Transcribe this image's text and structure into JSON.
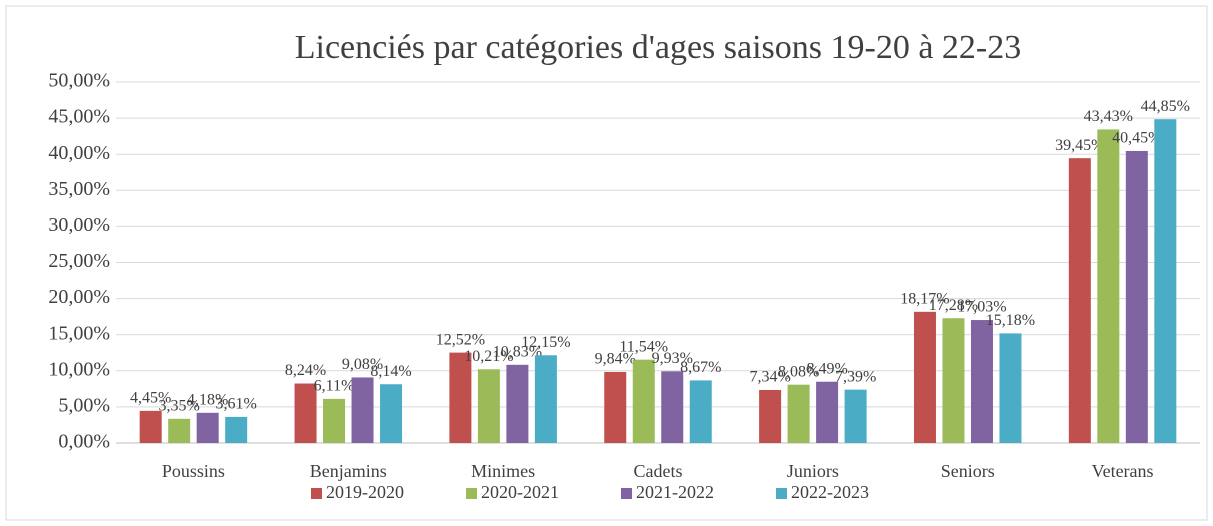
{
  "chart_data": {
    "type": "bar",
    "title": "Licenciés par catégories d'ages saisons 19-20 à 22-23",
    "categories": [
      "Poussins",
      "Benjamins",
      "Minimes",
      "Cadets",
      "Juniors",
      "Seniors",
      "Veterans"
    ],
    "series": [
      {
        "name": "2019-2020",
        "color": "#c0504d",
        "values": [
          4.45,
          8.24,
          12.52,
          9.84,
          7.34,
          18.17,
          39.45
        ],
        "value_labels": [
          "4,45%",
          "8,24%",
          "12,52%",
          "9,84%",
          "7,34%",
          "18,17%",
          "39,45%"
        ]
      },
      {
        "name": "2020-2021",
        "color": "#9bbb59",
        "values": [
          3.35,
          6.11,
          10.21,
          11.54,
          8.08,
          17.28,
          43.43
        ],
        "value_labels": [
          "3,35%",
          "6,11%",
          "10,21%",
          "11,54%",
          "8,08%",
          "17,28%",
          "43,43%"
        ]
      },
      {
        "name": "2021-2022",
        "color": "#8064a2",
        "values": [
          4.18,
          9.08,
          10.83,
          9.93,
          8.49,
          17.03,
          40.45
        ],
        "value_labels": [
          "4,18%",
          "9,08%",
          "10,83%",
          "9,93%",
          "8,49%",
          "17,03%",
          "40,45%"
        ]
      },
      {
        "name": "2022-2023",
        "color": "#4bacc6",
        "values": [
          3.61,
          8.14,
          12.15,
          8.67,
          7.39,
          15.18,
          44.85
        ],
        "value_labels": [
          "3,61%",
          "8,14%",
          "12,15%",
          "8,67%",
          "7,39%",
          "15,18%",
          "44,85%"
        ]
      }
    ],
    "ylim": [
      0,
      50
    ],
    "yticks": [
      {
        "value": 0,
        "label": "0,00%"
      },
      {
        "value": 5,
        "label": "5,00%"
      },
      {
        "value": 10,
        "label": "10,00%"
      },
      {
        "value": 15,
        "label": "15,00%"
      },
      {
        "value": 20,
        "label": "20,00%"
      },
      {
        "value": 25,
        "label": "25,00%"
      },
      {
        "value": 30,
        "label": "30,00%"
      },
      {
        "value": 35,
        "label": "35,00%"
      },
      {
        "value": 40,
        "label": "40,00%"
      },
      {
        "value": 45,
        "label": "45,00%"
      },
      {
        "value": 50,
        "label": "50,00%"
      }
    ],
    "grid": true,
    "legend": "bottom"
  }
}
